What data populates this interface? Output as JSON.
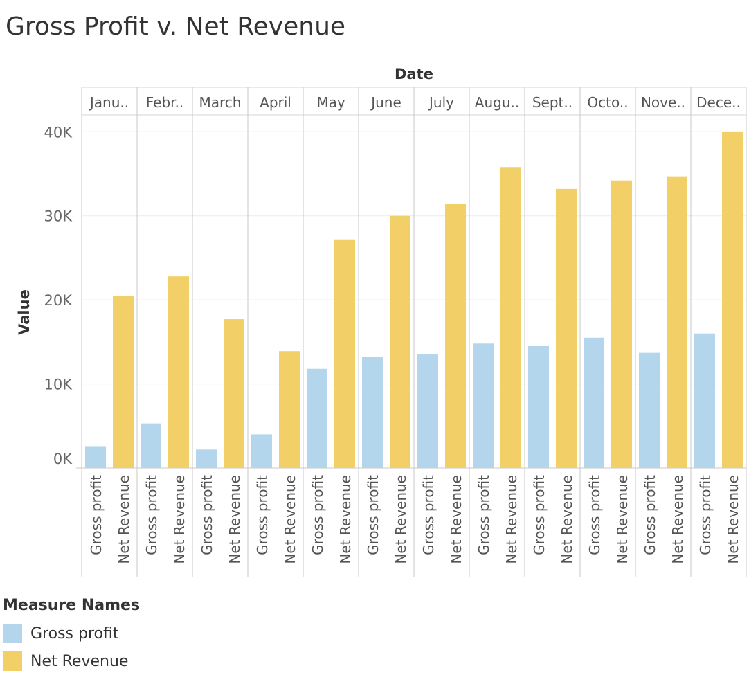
{
  "chart_data": {
    "type": "bar",
    "title": "Gross Profit v. Net Revenue",
    "xlabel": "Date",
    "ylabel": "Value",
    "categories": [
      "Janu..",
      "Febr..",
      "March",
      "April",
      "May",
      "June",
      "July",
      "Augu..",
      "Sept..",
      "Octo..",
      "Nove..",
      "Dece.."
    ],
    "series": [
      {
        "name": "Gross profit",
        "color": "#b3d6ec",
        "values": [
          2600,
          5300,
          2200,
          4000,
          11800,
          13200,
          13500,
          14800,
          14500,
          15500,
          13700,
          16000
        ]
      },
      {
        "name": "Net Revenue",
        "color": "#f2cf67",
        "values": [
          20500,
          22800,
          17700,
          13900,
          27200,
          30000,
          31400,
          35800,
          33200,
          34200,
          34700,
          40000
        ]
      }
    ],
    "ylim": [
      0,
      42000
    ],
    "yticks": [
      0,
      10000,
      20000,
      30000,
      40000
    ],
    "ytick_labels": [
      "0K",
      "10K",
      "20K",
      "30K",
      "40K"
    ],
    "grid": true,
    "legend_title": "Measure Names",
    "legend_position": "bottom-left"
  }
}
